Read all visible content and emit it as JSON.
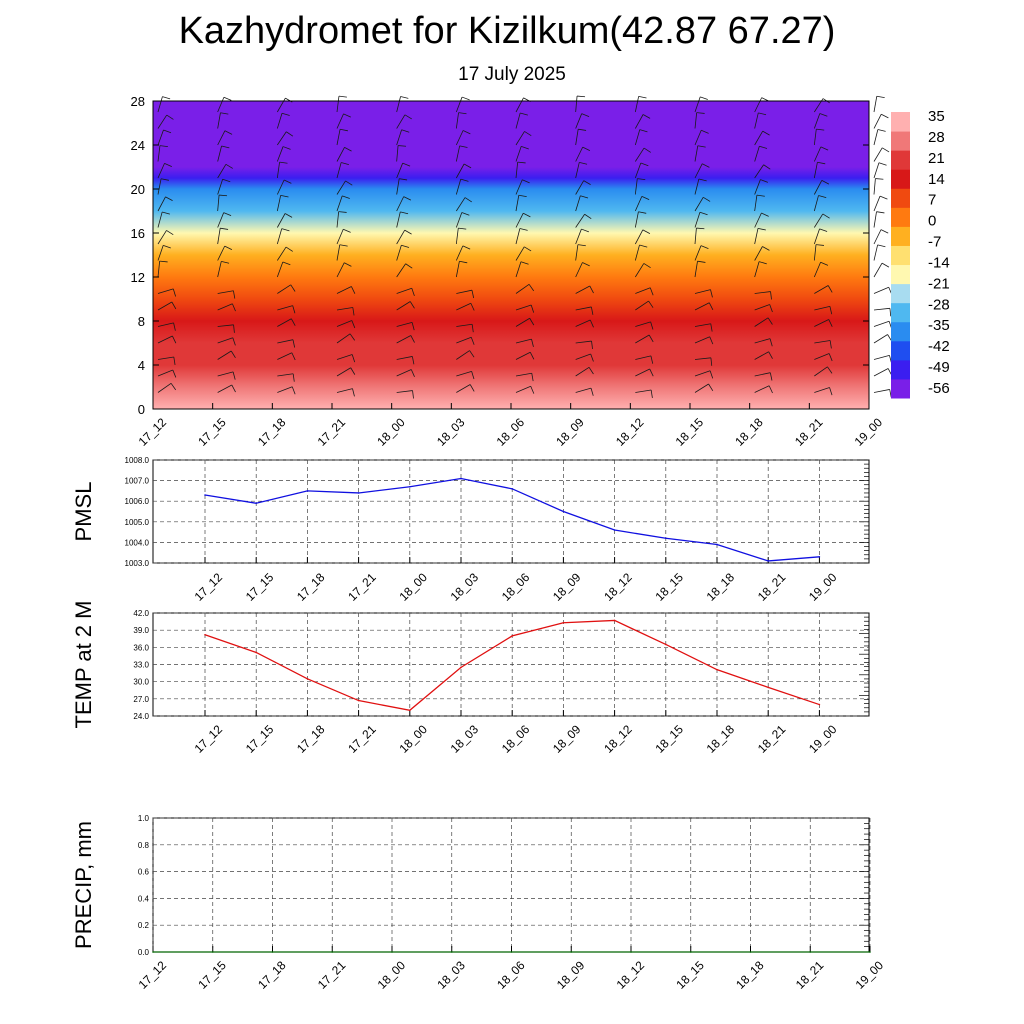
{
  "title": "Kazhydromet for Kizilkum(42.87 67.27)",
  "subtitle": "17 July 2025",
  "colors": {
    "pmsl_line": "#1010e0",
    "temp_line": "#e01010",
    "precip_line": "#006400",
    "grid": "#444444"
  },
  "chart_data": [
    {
      "type": "heatmap",
      "title": "",
      "ylabel": "",
      "ylim": [
        0,
        28
      ],
      "y_ticks": [
        0,
        4,
        8,
        12,
        16,
        20,
        24,
        28
      ],
      "x_ticks": [
        "17_12",
        "17_15",
        "17_18",
        "17_21",
        "18_00",
        "18_03",
        "18_06",
        "18_09",
        "18_12",
        "18_15",
        "18_18",
        "18_21",
        "19_00"
      ],
      "colorbar_labels": [
        "35",
        "28",
        "21",
        "14",
        "7",
        "0",
        "-7",
        "-14",
        "-21",
        "-28",
        "-35",
        "-42",
        "-49",
        "-56"
      ],
      "colorbar_range": [
        -63,
        35
      ],
      "colorbar_colors": [
        "#7a1fe8",
        "#3b1ef0",
        "#1f4ef0",
        "#2a8cf0",
        "#4fb8f0",
        "#a8dcf0",
        "#fff8b0",
        "#ffe070",
        "#ffb020",
        "#ff7a10",
        "#f04a10",
        "#d81818",
        "#e03838",
        "#f07878",
        "#ffb0b0"
      ],
      "temperature_profile": [
        {
          "height": 0,
          "temp": 35
        },
        {
          "height": 2,
          "temp": 29
        },
        {
          "height": 4,
          "temp": 24
        },
        {
          "height": 6,
          "temp": 18
        },
        {
          "height": 8,
          "temp": 13
        },
        {
          "height": 10,
          "temp": 6
        },
        {
          "height": 12,
          "temp": -2
        },
        {
          "height": 14,
          "temp": -10
        },
        {
          "height": 16,
          "temp": -20
        },
        {
          "height": 18,
          "temp": -33
        },
        {
          "height": 20,
          "temp": -45
        },
        {
          "height": 21,
          "temp": -55
        },
        {
          "height": 22,
          "temp": -60
        },
        {
          "height": 28,
          "temp": -63
        }
      ],
      "wind_barb_heights": [
        1.5,
        3,
        4.5,
        6,
        7.5,
        9,
        10.5,
        12,
        13.5,
        15,
        16.5,
        18,
        19.5,
        21,
        22.5,
        24,
        25.5,
        27
      ]
    },
    {
      "type": "line",
      "ylabel": "PMSL",
      "ylim": [
        1003.0,
        1008.0
      ],
      "y_ticks": [
        "1003.0",
        "1004.0",
        "1005.0",
        "1006.0",
        "1007.0",
        "1008.0"
      ],
      "x": [
        "17_12",
        "17_15",
        "17_18",
        "17_21",
        "18_00",
        "18_03",
        "18_06",
        "18_09",
        "18_12",
        "18_15",
        "18_18",
        "18_21",
        "19_00"
      ],
      "values": [
        1006.3,
        1005.9,
        1006.5,
        1006.4,
        1006.7,
        1007.1,
        1006.6,
        1005.5,
        1004.6,
        1004.2,
        1003.9,
        1003.1,
        1003.3
      ]
    },
    {
      "type": "line",
      "ylabel": "TEMP at 2 M",
      "ylim": [
        24.0,
        42.0
      ],
      "y_ticks": [
        "24.0",
        "27.0",
        "30.0",
        "33.0",
        "36.0",
        "39.0",
        "42.0"
      ],
      "x": [
        "17_12",
        "17_15",
        "17_18",
        "17_21",
        "18_00",
        "18_03",
        "18_06",
        "18_09",
        "18_12",
        "18_15",
        "18_18",
        "18_21",
        "19_00"
      ],
      "values": [
        38.2,
        35.1,
        30.5,
        26.7,
        25.0,
        32.5,
        38.0,
        40.3,
        40.7,
        36.5,
        32.1,
        29.0,
        26.0
      ]
    },
    {
      "type": "line",
      "ylabel": "PRECIP, mm",
      "ylim": [
        0.0,
        1.0
      ],
      "y_ticks": [
        "0.0",
        "0.2",
        "0.4",
        "0.6",
        "0.8",
        "1.0"
      ],
      "x": [
        "17_12",
        "17_15",
        "17_18",
        "17_21",
        "18_00",
        "18_03",
        "18_06",
        "18_09",
        "18_12",
        "18_15",
        "18_18",
        "18_21",
        "19_00"
      ],
      "values": [
        0,
        0,
        0,
        0,
        0,
        0,
        0,
        0,
        0,
        0,
        0,
        0,
        0
      ]
    }
  ]
}
